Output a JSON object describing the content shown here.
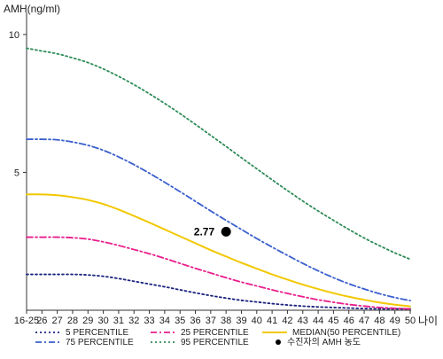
{
  "chart_data": {
    "type": "line",
    "ylabel": "AMH(ng/ml)",
    "xlabel": "나이",
    "x_categories": [
      "16-25",
      "26",
      "27",
      "28",
      "29",
      "30",
      "31",
      "32",
      "33",
      "34",
      "35",
      "36",
      "37",
      "38",
      "39",
      "40",
      "41",
      "42",
      "43",
      "44",
      "45",
      "46",
      "47",
      "48",
      "49",
      "50"
    ],
    "y_ticks": [
      5,
      10
    ],
    "ylim": [
      0,
      10.8
    ],
    "series": [
      {
        "name": "5 PERCENTILE",
        "color": "#1a237e",
        "style": "dotted",
        "values": [
          1.3,
          1.3,
          1.3,
          1.3,
          1.28,
          1.23,
          1.15,
          1.05,
          0.95,
          0.85,
          0.74,
          0.63,
          0.53,
          0.44,
          0.36,
          0.3,
          0.24,
          0.19,
          0.15,
          0.12,
          0.1,
          0.08,
          0.06,
          0.05,
          0.05,
          0.05
        ]
      },
      {
        "name": "25 PERCENTILE",
        "color": "#e91e8c",
        "style": "dashdot",
        "values": [
          2.65,
          2.65,
          2.65,
          2.63,
          2.58,
          2.48,
          2.35,
          2.2,
          2.05,
          1.88,
          1.7,
          1.52,
          1.35,
          1.18,
          1.02,
          0.88,
          0.74,
          0.61,
          0.49,
          0.38,
          0.29,
          0.21,
          0.15,
          0.1,
          0.07,
          0.05
        ]
      },
      {
        "name": "MEDIAN(50 PERCENTILE)",
        "color": "#f2c800",
        "style": "solid",
        "values": [
          4.2,
          4.2,
          4.17,
          4.1,
          4.0,
          3.85,
          3.65,
          3.42,
          3.18,
          2.93,
          2.68,
          2.43,
          2.18,
          1.95,
          1.72,
          1.51,
          1.3,
          1.11,
          0.93,
          0.77,
          0.62,
          0.49,
          0.38,
          0.28,
          0.2,
          0.14
        ]
      },
      {
        "name": "75 PERCENTILE",
        "color": "#3a5fcd",
        "style": "dashdot",
        "values": [
          6.2,
          6.2,
          6.18,
          6.1,
          5.98,
          5.8,
          5.56,
          5.28,
          4.97,
          4.64,
          4.3,
          3.95,
          3.6,
          3.26,
          2.93,
          2.6,
          2.29,
          1.99,
          1.7,
          1.43,
          1.18,
          0.96,
          0.77,
          0.6,
          0.46,
          0.35
        ]
      },
      {
        "name": "95 PERCENTILE",
        "color": "#2e8b57",
        "style": "dotted",
        "values": [
          9.5,
          9.4,
          9.3,
          9.15,
          8.98,
          8.75,
          8.48,
          8.18,
          7.85,
          7.5,
          7.13,
          6.74,
          6.34,
          5.94,
          5.53,
          5.13,
          4.73,
          4.34,
          3.96,
          3.6,
          3.26,
          2.93,
          2.62,
          2.34,
          2.08,
          1.85
        ]
      }
    ],
    "annotation": {
      "label": "2.77",
      "x_category": "38",
      "y": 2.85
    },
    "legend": {
      "placement": "bottom",
      "items": [
        {
          "label": "5 PERCENTILE",
          "series": "5 PERCENTILE"
        },
        {
          "label": "25 PERCENTILE",
          "series": "25 PERCENTILE"
        },
        {
          "label": "MEDIAN(50 PERCENTILE)",
          "series": "MEDIAN(50 PERCENTILE)"
        },
        {
          "label": "75 PERCENTILE",
          "series": "75 PERCENTILE"
        },
        {
          "label": "95 PERCENTILE",
          "series": "95 PERCENTILE"
        },
        {
          "label": "수진자의 AMH 농도",
          "marker": "dot"
        }
      ]
    }
  }
}
